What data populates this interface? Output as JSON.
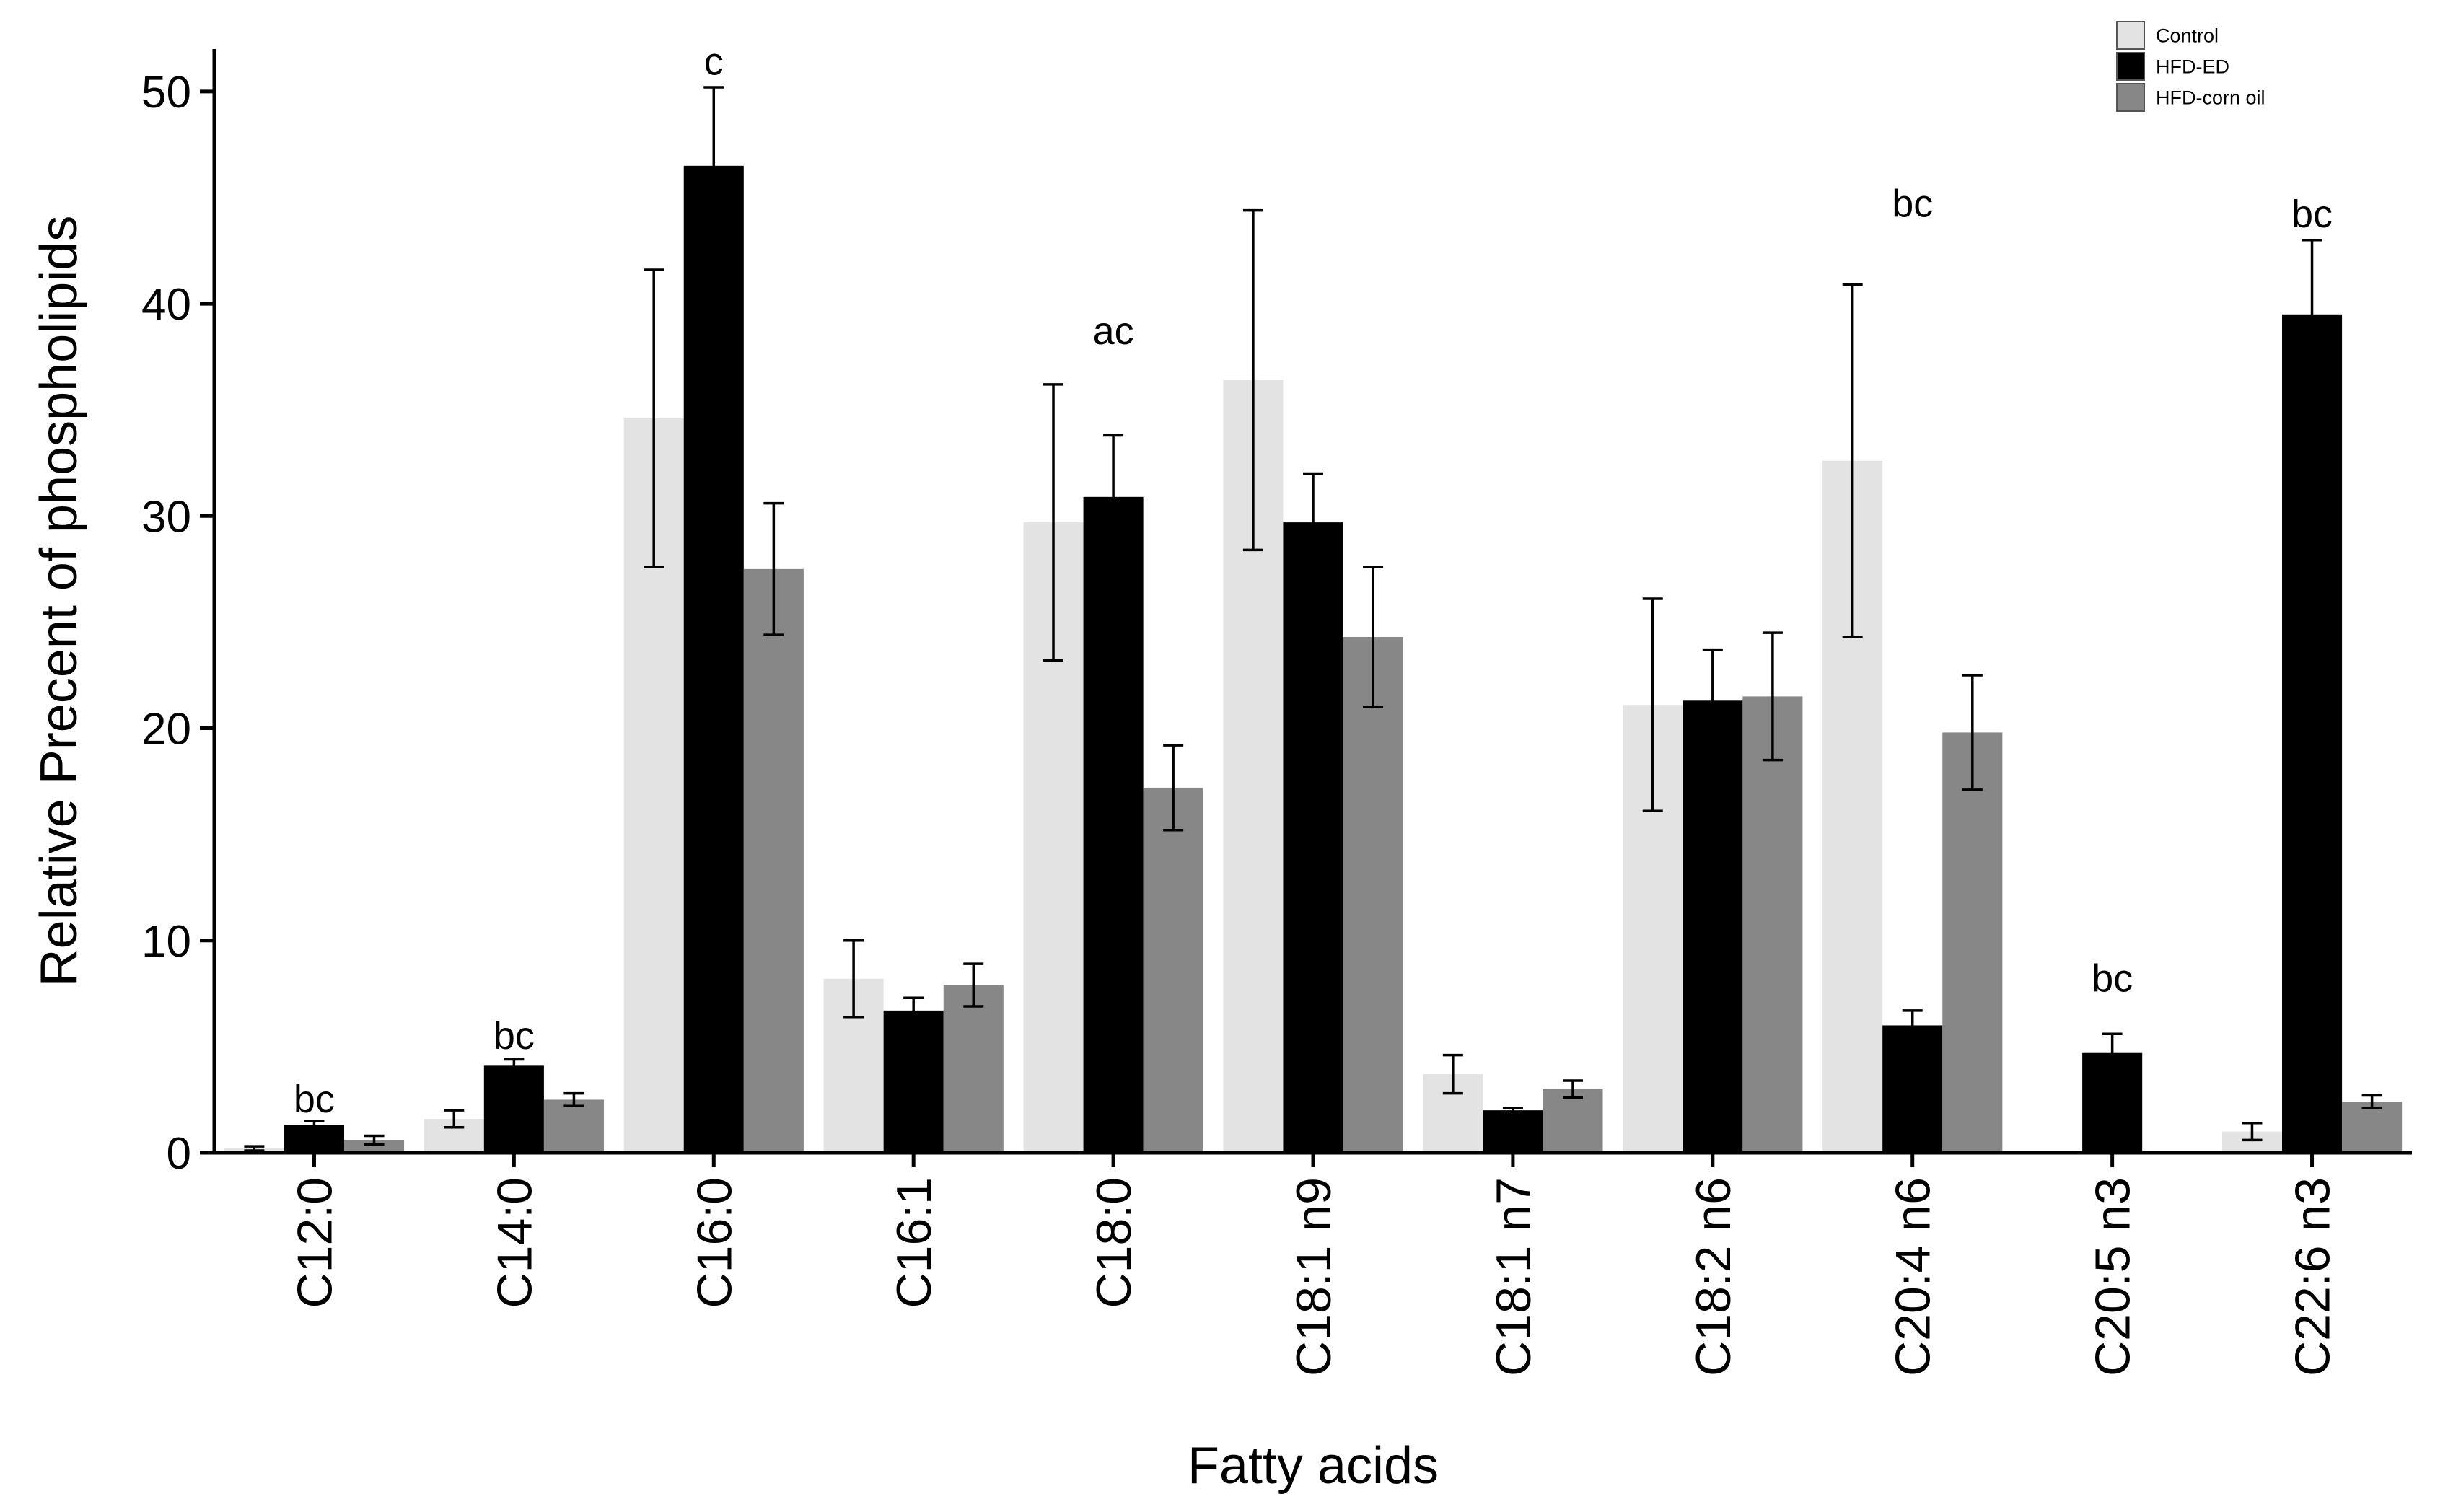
{
  "chart_data": {
    "type": "bar",
    "xlabel": "Fatty acids",
    "ylabel": "Relative Precent of phospholipids",
    "ylim": [
      0,
      52
    ],
    "yticks": [
      0,
      10,
      20,
      30,
      40,
      50
    ],
    "grid": false,
    "legend_position": "top-right",
    "categories": [
      "C12:0",
      "C14:0",
      "C16:0",
      "C16:1",
      "C18:0",
      "C18:1 n9",
      "C18:1 n7",
      "C18:2 n6",
      "C20:4 n6",
      "C20:5 n3",
      "C22:6 n3"
    ],
    "series": [
      {
        "name": "Control",
        "color": "#e3e3e3",
        "values": [
          0.2,
          1.6,
          34.6,
          8.2,
          29.7,
          36.4,
          3.7,
          21.1,
          32.6,
          0.0,
          1.0
        ],
        "errors": [
          0.1,
          0.4,
          7.0,
          1.8,
          6.5,
          8.0,
          0.9,
          5.0,
          8.3,
          0.0,
          0.4
        ]
      },
      {
        "name": "HFD-ED",
        "color": "#000000",
        "values": [
          1.3,
          4.1,
          46.5,
          6.7,
          30.9,
          29.7,
          2.0,
          21.3,
          6.0,
          4.7,
          39.5
        ],
        "errors": [
          0.2,
          0.3,
          3.7,
          0.6,
          2.9,
          2.3,
          0.1,
          2.4,
          0.7,
          0.9,
          3.5
        ]
      },
      {
        "name": "HFD-corn oil",
        "color": "#878787",
        "values": [
          0.6,
          2.5,
          27.5,
          7.9,
          17.2,
          24.3,
          3.0,
          21.5,
          19.8,
          0.0,
          2.4
        ],
        "errors": [
          0.2,
          0.3,
          3.1,
          1.0,
          2.0,
          3.3,
          0.4,
          3.0,
          2.7,
          0.0,
          0.3
        ]
      }
    ],
    "annotations": [
      {
        "category": "C12:0",
        "text": "bc",
        "y": 1.9
      },
      {
        "category": "C14:0",
        "text": "bc",
        "y": 4.9
      },
      {
        "category": "C16:0",
        "text": "c",
        "y": 50.8
      },
      {
        "category": "C18:0",
        "text": "ac",
        "y": 38.1
      },
      {
        "category": "C20:4 n6",
        "text": "bc",
        "y": 44.1
      },
      {
        "category": "C20:5 n3",
        "text": "bc",
        "y": 7.6
      },
      {
        "category": "C22:6 n3",
        "text": "bc",
        "y": 43.6
      }
    ]
  }
}
